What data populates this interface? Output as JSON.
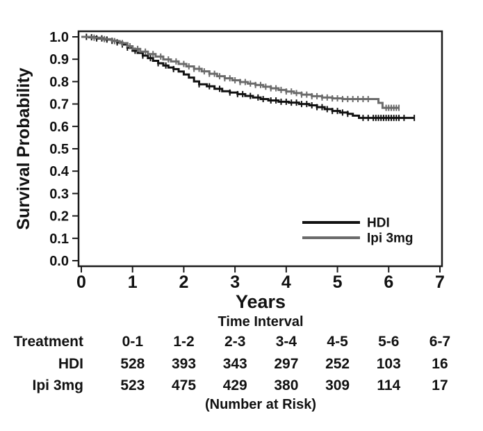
{
  "figure": {
    "background": "#ffffff",
    "text_color": "#111111"
  },
  "chart_data": {
    "type": "line",
    "subtype": "kaplan-meier-step",
    "title": "",
    "xlabel": "Years",
    "ylabel": "Survival Probability",
    "xlim": [
      0,
      7
    ],
    "ylim": [
      0.0,
      1.0
    ],
    "x_ticks": [
      "0",
      "1",
      "2",
      "3",
      "4",
      "5",
      "6",
      "7"
    ],
    "y_ticks": [
      "1.0",
      "0.9",
      "0.8",
      "0.7",
      "0.6",
      "0.5",
      "0.4",
      "0.3",
      "0.2",
      "0.1",
      "0.0"
    ],
    "grid": false,
    "legend_position": "inside-lower-right",
    "series": [
      {
        "name": "HDI",
        "color": "#111111",
        "points": [
          [
            0,
            1.0
          ],
          [
            0.15,
            0.998
          ],
          [
            0.3,
            0.993
          ],
          [
            0.45,
            0.988
          ],
          [
            0.6,
            0.982
          ],
          [
            0.7,
            0.975
          ],
          [
            0.8,
            0.966
          ],
          [
            0.9,
            0.952
          ],
          [
            1.0,
            0.938
          ],
          [
            1.1,
            0.928
          ],
          [
            1.2,
            0.916
          ],
          [
            1.3,
            0.905
          ],
          [
            1.4,
            0.893
          ],
          [
            1.5,
            0.882
          ],
          [
            1.6,
            0.872
          ],
          [
            1.7,
            0.863
          ],
          [
            1.8,
            0.856
          ],
          [
            1.9,
            0.845
          ],
          [
            2.0,
            0.832
          ],
          [
            2.1,
            0.818
          ],
          [
            2.2,
            0.801
          ],
          [
            2.3,
            0.788
          ],
          [
            2.45,
            0.779
          ],
          [
            2.6,
            0.768
          ],
          [
            2.75,
            0.757
          ],
          [
            2.9,
            0.751
          ],
          [
            3.05,
            0.744
          ],
          [
            3.2,
            0.736
          ],
          [
            3.35,
            0.729
          ],
          [
            3.5,
            0.722
          ],
          [
            3.65,
            0.716
          ],
          [
            3.85,
            0.71
          ],
          [
            4.05,
            0.706
          ],
          [
            4.25,
            0.7
          ],
          [
            4.45,
            0.694
          ],
          [
            4.6,
            0.686
          ],
          [
            4.75,
            0.677
          ],
          [
            4.9,
            0.669
          ],
          [
            5.05,
            0.662
          ],
          [
            5.2,
            0.656
          ],
          [
            5.3,
            0.648
          ],
          [
            5.42,
            0.638
          ],
          [
            6.5,
            0.638
          ]
        ],
        "censor_times": [
          0.1,
          0.2,
          0.3,
          0.4,
          0.5,
          0.6,
          0.7,
          0.8,
          0.9,
          1.05,
          1.2,
          1.35,
          1.5,
          1.65,
          1.8,
          2.3,
          2.5,
          2.7,
          2.9,
          3.05,
          3.15,
          3.3,
          3.45,
          3.55,
          3.7,
          3.8,
          3.9,
          4.0,
          4.1,
          4.2,
          4.3,
          4.4,
          4.5,
          4.6,
          4.7,
          4.8,
          4.9,
          5.0,
          5.1,
          5.2,
          5.5,
          5.6,
          5.7,
          5.75,
          5.8,
          5.85,
          5.9,
          5.95,
          6.0,
          6.05,
          6.1,
          6.15,
          6.2,
          6.3,
          6.5
        ]
      },
      {
        "name": "Ipi 3mg",
        "color": "#6b6b6b",
        "points": [
          [
            0,
            1.0
          ],
          [
            0.2,
            0.996
          ],
          [
            0.4,
            0.99
          ],
          [
            0.6,
            0.981
          ],
          [
            0.75,
            0.972
          ],
          [
            0.9,
            0.958
          ],
          [
            1.0,
            0.946
          ],
          [
            1.15,
            0.934
          ],
          [
            1.3,
            0.923
          ],
          [
            1.45,
            0.912
          ],
          [
            1.6,
            0.899
          ],
          [
            1.75,
            0.89
          ],
          [
            1.9,
            0.879
          ],
          [
            2.05,
            0.868
          ],
          [
            2.2,
            0.857
          ],
          [
            2.35,
            0.846
          ],
          [
            2.5,
            0.835
          ],
          [
            2.65,
            0.824
          ],
          [
            2.8,
            0.815
          ],
          [
            2.95,
            0.806
          ],
          [
            3.1,
            0.798
          ],
          [
            3.25,
            0.791
          ],
          [
            3.4,
            0.785
          ],
          [
            3.55,
            0.777
          ],
          [
            3.7,
            0.77
          ],
          [
            3.85,
            0.763
          ],
          [
            4.0,
            0.756
          ],
          [
            4.15,
            0.749
          ],
          [
            4.3,
            0.742
          ],
          [
            4.5,
            0.735
          ],
          [
            4.7,
            0.729
          ],
          [
            4.9,
            0.725
          ],
          [
            5.1,
            0.722
          ],
          [
            5.72,
            0.722
          ],
          [
            5.8,
            0.705
          ],
          [
            5.88,
            0.683
          ],
          [
            6.2,
            0.683
          ]
        ],
        "censor_times": [
          0.25,
          0.45,
          0.65,
          0.8,
          0.95,
          1.1,
          1.25,
          1.4,
          1.55,
          1.7,
          1.85,
          2.0,
          2.1,
          2.2,
          2.3,
          2.4,
          2.5,
          2.6,
          2.7,
          2.8,
          2.9,
          3.0,
          3.1,
          3.2,
          3.3,
          3.4,
          3.5,
          3.6,
          3.7,
          3.8,
          3.9,
          4.0,
          4.1,
          4.2,
          4.3,
          4.4,
          4.5,
          4.6,
          4.7,
          4.8,
          4.9,
          5.0,
          5.1,
          5.2,
          5.3,
          5.4,
          5.5,
          5.6,
          5.95,
          6.0,
          6.05,
          6.1,
          6.15,
          6.2
        ]
      }
    ]
  },
  "risk_table": {
    "title": "Time Interval",
    "row_header": "Treatment",
    "columns": [
      "0-1",
      "1-2",
      "2-3",
      "3-4",
      "4-5",
      "5-6",
      "6-7"
    ],
    "rows": [
      {
        "label": "HDI",
        "values": [
          "528",
          "393",
          "343",
          "297",
          "252",
          "103",
          "16"
        ]
      },
      {
        "label": "Ipi 3mg",
        "values": [
          "523",
          "475",
          "429",
          "380",
          "309",
          "114",
          "17"
        ]
      }
    ],
    "caption": "(Number at Risk)"
  }
}
